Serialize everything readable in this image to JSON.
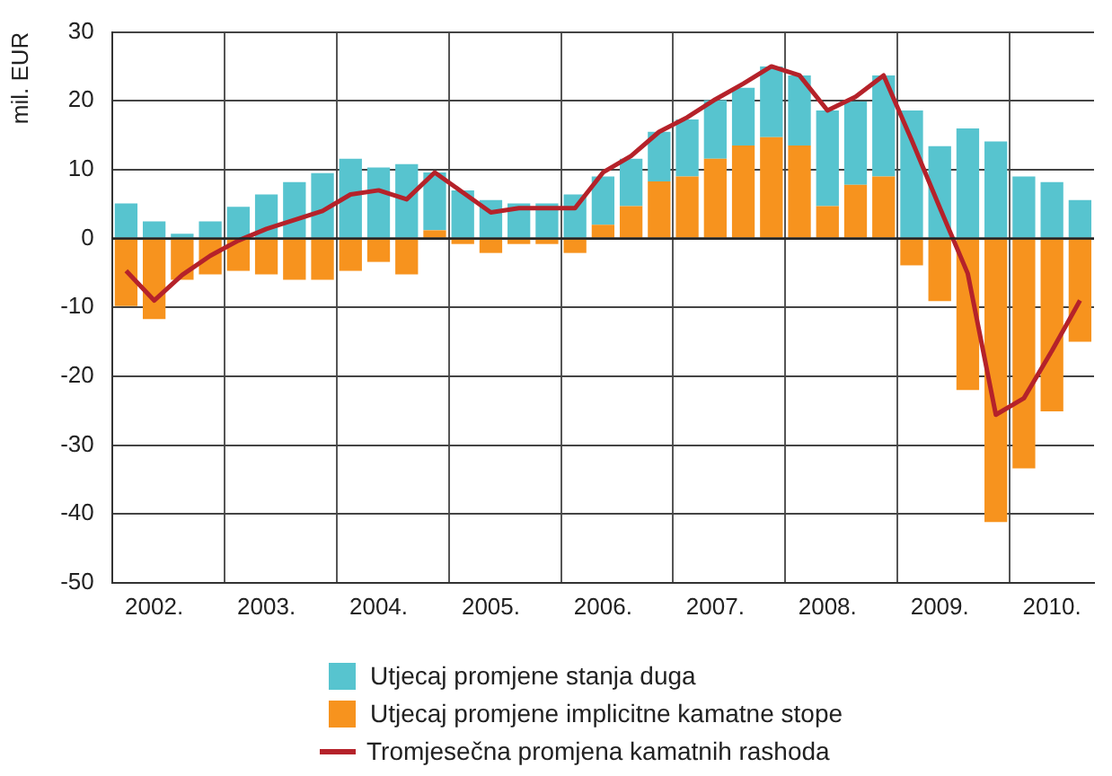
{
  "chart_data": {
    "type": "bar",
    "stacked": true,
    "ylabel": "mil. EUR",
    "categories": [
      null,
      "2002.",
      null,
      null,
      null,
      "2003.",
      null,
      null,
      null,
      "2004.",
      null,
      null,
      null,
      "2005.",
      null,
      null,
      null,
      "2006.",
      null,
      null,
      null,
      "2007.",
      null,
      null,
      null,
      "2008.",
      null,
      null,
      null,
      "2009.",
      null,
      null,
      null,
      "2010.",
      null
    ],
    "series": [
      {
        "name": "Utjecaj promjene implicitne kamatne stope",
        "color": "#f7931e",
        "values": [
          -9.8,
          -11.7,
          -6.0,
          -5.2,
          -4.7,
          -5.2,
          -6.0,
          -6.0,
          -4.7,
          -3.4,
          -5.2,
          1.2,
          -0.8,
          -2.1,
          -0.8,
          -0.8,
          -2.1,
          2.0,
          4.7,
          8.3,
          9.0,
          11.6,
          13.5,
          14.7,
          13.5,
          4.7,
          7.8,
          9.0,
          -3.9,
          -9.1,
          -22.0,
          -41.2,
          -33.4,
          -25.1,
          -15.0
        ]
      },
      {
        "name": "Utjecaj promjene stanja duga",
        "color": "#57c4cf",
        "values": [
          5.1,
          2.5,
          0.7,
          2.5,
          4.6,
          6.4,
          8.2,
          9.5,
          11.6,
          10.3,
          10.8,
          8.4,
          7.0,
          5.6,
          5.1,
          5.1,
          6.4,
          7.0,
          6.9,
          7.2,
          8.3,
          8.5,
          8.4,
          10.3,
          10.2,
          13.9,
          12.1,
          14.7,
          18.6,
          13.4,
          16.0,
          14.1,
          9.0,
          8.2,
          5.6
        ]
      },
      {
        "name": "Tromjesečna promjena kamatnih rashoda",
        "type": "line",
        "color": "#b5222a",
        "values": [
          -4.7,
          -9.0,
          -5.3,
          -2.5,
          -0.3,
          1.4,
          2.7,
          4.0,
          6.4,
          7.0,
          5.7,
          9.6,
          6.7,
          3.8,
          4.4,
          4.4,
          4.4,
          9.6,
          12.0,
          15.5,
          17.6,
          20.2,
          22.5,
          25.0,
          23.7,
          18.6,
          20.6,
          23.7,
          14.3,
          4.5,
          -5.1,
          -25.6,
          -23.2,
          -16.3,
          -9.0
        ]
      }
    ],
    "ylim": [
      -50,
      30
    ],
    "yticks": [
      -50,
      -40,
      -30,
      -20,
      -10,
      0,
      10,
      20,
      30
    ],
    "grid": true,
    "legend": "bottom"
  }
}
